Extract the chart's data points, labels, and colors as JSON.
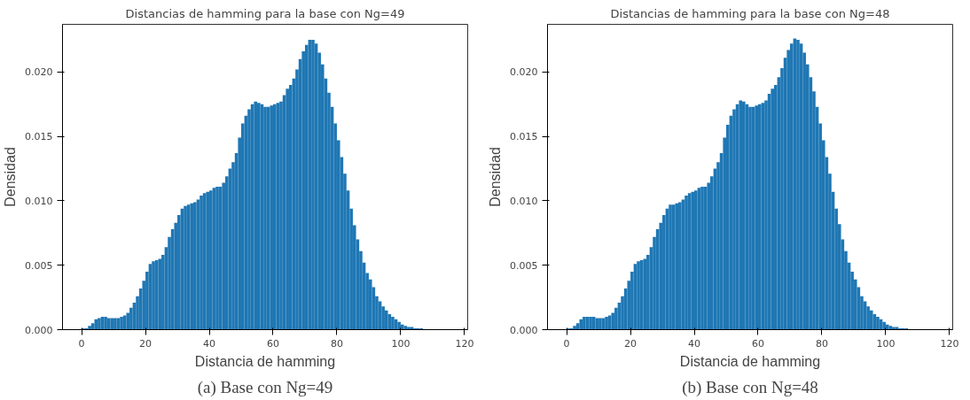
{
  "chart_data": [
    {
      "type": "histogram",
      "title": "Distancias de hamming para la base con Ng=49",
      "xlabel": "Distancia de hamming",
      "ylabel": "Densidad",
      "color": "#1f77b4",
      "grid": false,
      "bins": [
        0,
        1,
        2,
        3,
        4,
        5,
        6,
        7,
        8,
        9,
        10,
        11,
        12,
        13,
        14,
        15,
        16,
        17,
        18,
        19,
        20,
        21,
        22,
        23,
        24,
        25,
        26,
        27,
        28,
        29,
        30,
        31,
        32,
        33,
        34,
        35,
        36,
        37,
        38,
        39,
        40,
        41,
        42,
        43,
        44,
        45,
        46,
        47,
        48,
        49,
        50,
        51,
        52,
        53,
        54,
        55,
        56,
        57,
        58,
        59,
        60,
        61,
        62,
        63,
        64,
        65,
        66,
        67,
        68,
        69,
        70,
        71,
        72,
        73,
        74,
        75,
        76,
        77,
        78,
        79,
        80,
        81,
        82,
        83,
        84,
        85,
        86,
        87,
        88,
        89,
        90,
        91,
        92,
        93,
        94,
        95,
        96,
        97,
        98,
        99,
        100,
        101,
        102,
        103,
        104,
        105,
        106,
        107
      ],
      "values": [
        0.0001,
        0.0001,
        0.0003,
        0.0005,
        0.0008,
        0.0009,
        0.001,
        0.001,
        0.0009,
        0.0009,
        0.0009,
        0.0009,
        0.001,
        0.0011,
        0.0013,
        0.0017,
        0.0021,
        0.0026,
        0.0032,
        0.0038,
        0.0045,
        0.0051,
        0.0053,
        0.0054,
        0.0055,
        0.0058,
        0.0064,
        0.0072,
        0.0078,
        0.0083,
        0.0089,
        0.0094,
        0.0096,
        0.0097,
        0.0098,
        0.0099,
        0.0101,
        0.0104,
        0.0106,
        0.0107,
        0.0108,
        0.011,
        0.0111,
        0.0111,
        0.0114,
        0.0119,
        0.0125,
        0.013,
        0.0137,
        0.0149,
        0.016,
        0.0166,
        0.0171,
        0.0175,
        0.0177,
        0.0176,
        0.0175,
        0.0173,
        0.0173,
        0.0174,
        0.0175,
        0.0176,
        0.0177,
        0.0182,
        0.0187,
        0.019,
        0.0195,
        0.0202,
        0.021,
        0.0216,
        0.0221,
        0.0225,
        0.0225,
        0.0222,
        0.0215,
        0.0206,
        0.0195,
        0.0184,
        0.0173,
        0.016,
        0.0147,
        0.0134,
        0.0121,
        0.0108,
        0.0094,
        0.0081,
        0.007,
        0.0061,
        0.0052,
        0.0044,
        0.0039,
        0.0033,
        0.0026,
        0.0022,
        0.0018,
        0.0015,
        0.0012,
        0.001,
        0.0008,
        0.0006,
        0.0004,
        0.0003,
        0.0002,
        0.0002,
        0.0001,
        0.0001,
        0.0001
      ],
      "xlim": [
        -6,
        121
      ],
      "ylim": [
        0,
        0.0237
      ],
      "xticks": [
        0,
        20,
        40,
        60,
        80,
        100,
        120
      ],
      "yticks": [
        {
          "value": 0,
          "label": "0.000"
        },
        {
          "value": 0.005,
          "label": "0.005"
        },
        {
          "value": 0.01,
          "label": "0.010"
        },
        {
          "value": 0.015,
          "label": "0.015"
        },
        {
          "value": 0.02,
          "label": "0.020"
        }
      ],
      "annotations": [
        "(a) Base con Ng=49"
      ]
    },
    {
      "type": "histogram",
      "title": "Distancias de hamming para la base con Ng=48",
      "xlabel": "Distancia de hamming",
      "ylabel": "Densidad",
      "color": "#1f77b4",
      "grid": false,
      "bins": [
        0,
        1,
        2,
        3,
        4,
        5,
        6,
        7,
        8,
        9,
        10,
        11,
        12,
        13,
        14,
        15,
        16,
        17,
        18,
        19,
        20,
        21,
        22,
        23,
        24,
        25,
        26,
        27,
        28,
        29,
        30,
        31,
        32,
        33,
        34,
        35,
        36,
        37,
        38,
        39,
        40,
        41,
        42,
        43,
        44,
        45,
        46,
        47,
        48,
        49,
        50,
        51,
        52,
        53,
        54,
        55,
        56,
        57,
        58,
        59,
        60,
        61,
        62,
        63,
        64,
        65,
        66,
        67,
        68,
        69,
        70,
        71,
        72,
        73,
        74,
        75,
        76,
        77,
        78,
        79,
        80,
        81,
        82,
        83,
        84,
        85,
        86,
        87,
        88,
        89,
        90,
        91,
        92,
        93,
        94,
        95,
        96,
        97,
        98,
        99,
        100,
        101,
        102,
        103,
        104,
        105,
        106,
        107
      ],
      "values": [
        0.0001,
        0.0001,
        0.0003,
        0.0005,
        0.0008,
        0.001,
        0.001,
        0.001,
        0.001,
        0.0009,
        0.0009,
        0.0009,
        0.001,
        0.0011,
        0.0013,
        0.0017,
        0.0021,
        0.0026,
        0.0032,
        0.0038,
        0.0045,
        0.0051,
        0.0053,
        0.0054,
        0.0055,
        0.0058,
        0.0064,
        0.0072,
        0.0078,
        0.0083,
        0.0089,
        0.0094,
        0.0097,
        0.0097,
        0.0098,
        0.0099,
        0.0101,
        0.0104,
        0.0106,
        0.0107,
        0.0108,
        0.011,
        0.0111,
        0.0111,
        0.0114,
        0.0119,
        0.0125,
        0.013,
        0.0137,
        0.0149,
        0.0159,
        0.0166,
        0.0171,
        0.0175,
        0.0178,
        0.0177,
        0.0175,
        0.0173,
        0.0173,
        0.0174,
        0.0175,
        0.0176,
        0.0178,
        0.0183,
        0.0187,
        0.019,
        0.0196,
        0.0203,
        0.0211,
        0.0217,
        0.0222,
        0.0226,
        0.0225,
        0.0222,
        0.0215,
        0.0206,
        0.0196,
        0.0185,
        0.0173,
        0.016,
        0.0147,
        0.0134,
        0.0121,
        0.0107,
        0.0094,
        0.0082,
        0.007,
        0.0061,
        0.0052,
        0.0045,
        0.0039,
        0.0033,
        0.0026,
        0.0022,
        0.0018,
        0.0015,
        0.0012,
        0.001,
        0.0008,
        0.0006,
        0.0004,
        0.0003,
        0.0002,
        0.0002,
        0.0001,
        0.0001,
        0.0001
      ],
      "xlim": [
        -6,
        121
      ],
      "ylim": [
        0,
        0.0237
      ],
      "xticks": [
        0,
        20,
        40,
        60,
        80,
        100,
        120
      ],
      "yticks": [
        {
          "value": 0,
          "label": "0.000"
        },
        {
          "value": 0.005,
          "label": "0.005"
        },
        {
          "value": 0.01,
          "label": "0.010"
        },
        {
          "value": 0.015,
          "label": "0.015"
        },
        {
          "value": 0.02,
          "label": "0.020"
        }
      ],
      "annotations": [
        "(b) Base con Ng=48"
      ]
    }
  ]
}
